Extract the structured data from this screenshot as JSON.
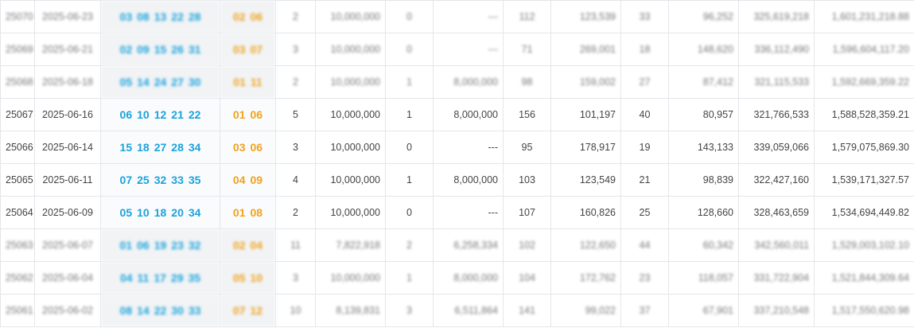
{
  "rows": [
    {
      "issue": "25070",
      "date": "2025-06-23",
      "front": [
        "03",
        "08",
        "13",
        "22",
        "28"
      ],
      "back": [
        "02",
        "06"
      ],
      "first_count": "2",
      "first_prize": "10,000,000",
      "second_count": "0",
      "second_prize": "---",
      "third_count": "112",
      "third_prize": "123,539",
      "fourth_count": "33",
      "fourth_prize": "96,252",
      "sales": "325,619,218",
      "pool": "1,601,231,218.88",
      "blurred": true
    },
    {
      "issue": "25069",
      "date": "2025-06-21",
      "front": [
        "02",
        "09",
        "15",
        "26",
        "31"
      ],
      "back": [
        "03",
        "07"
      ],
      "first_count": "3",
      "first_prize": "10,000,000",
      "second_count": "0",
      "second_prize": "---",
      "third_count": "71",
      "third_prize": "269,001",
      "fourth_count": "18",
      "fourth_prize": "148,620",
      "sales": "336,112,490",
      "pool": "1,596,604,117.20",
      "blurred": true
    },
    {
      "issue": "25068",
      "date": "2025-06-18",
      "front": [
        "05",
        "14",
        "24",
        "27",
        "30"
      ],
      "back": [
        "01",
        "11"
      ],
      "first_count": "2",
      "first_prize": "10,000,000",
      "second_count": "1",
      "second_prize": "8,000,000",
      "third_count": "98",
      "third_prize": "159,002",
      "fourth_count": "27",
      "fourth_prize": "87,412",
      "sales": "321,115,533",
      "pool": "1,592,669,359.22",
      "blurred": true
    },
    {
      "issue": "25067",
      "date": "2025-06-16",
      "front": [
        "06",
        "10",
        "12",
        "21",
        "22"
      ],
      "back": [
        "01",
        "06"
      ],
      "first_count": "5",
      "first_prize": "10,000,000",
      "second_count": "1",
      "second_prize": "8,000,000",
      "third_count": "156",
      "third_prize": "101,197",
      "fourth_count": "40",
      "fourth_prize": "80,957",
      "sales": "321,766,533",
      "pool": "1,588,528,359.21",
      "blurred": false
    },
    {
      "issue": "25066",
      "date": "2025-06-14",
      "front": [
        "15",
        "18",
        "27",
        "28",
        "34"
      ],
      "back": [
        "03",
        "06"
      ],
      "first_count": "3",
      "first_prize": "10,000,000",
      "second_count": "0",
      "second_prize": "---",
      "third_count": "95",
      "third_prize": "178,917",
      "fourth_count": "19",
      "fourth_prize": "143,133",
      "sales": "339,059,066",
      "pool": "1,579,075,869.30",
      "blurred": false
    },
    {
      "issue": "25065",
      "date": "2025-06-11",
      "front": [
        "07",
        "25",
        "32",
        "33",
        "35"
      ],
      "back": [
        "04",
        "09"
      ],
      "first_count": "4",
      "first_prize": "10,000,000",
      "second_count": "1",
      "second_prize": "8,000,000",
      "third_count": "103",
      "third_prize": "123,549",
      "fourth_count": "21",
      "fourth_prize": "98,839",
      "sales": "322,427,160",
      "pool": "1,539,171,327.57",
      "blurred": false
    },
    {
      "issue": "25064",
      "date": "2025-06-09",
      "front": [
        "05",
        "10",
        "18",
        "20",
        "34"
      ],
      "back": [
        "01",
        "08"
      ],
      "first_count": "2",
      "first_prize": "10,000,000",
      "second_count": "0",
      "second_prize": "---",
      "third_count": "107",
      "third_prize": "160,826",
      "fourth_count": "25",
      "fourth_prize": "128,660",
      "sales": "328,463,659",
      "pool": "1,534,694,449.82",
      "blurred": false
    },
    {
      "issue": "25063",
      "date": "2025-06-07",
      "front": [
        "01",
        "06",
        "19",
        "23",
        "32"
      ],
      "back": [
        "02",
        "04"
      ],
      "first_count": "11",
      "first_prize": "7,822,918",
      "second_count": "2",
      "second_prize": "6,258,334",
      "third_count": "102",
      "third_prize": "122,650",
      "fourth_count": "44",
      "fourth_prize": "60,342",
      "sales": "342,560,011",
      "pool": "1,529,003,102.10",
      "blurred": true
    },
    {
      "issue": "25062",
      "date": "2025-06-04",
      "front": [
        "04",
        "11",
        "17",
        "29",
        "35"
      ],
      "back": [
        "05",
        "10"
      ],
      "first_count": "3",
      "first_prize": "10,000,000",
      "second_count": "1",
      "second_prize": "8,000,000",
      "third_count": "104",
      "third_prize": "172,762",
      "fourth_count": "23",
      "fourth_prize": "118,057",
      "sales": "331,722,904",
      "pool": "1,521,844,309.64",
      "blurred": true
    },
    {
      "issue": "25061",
      "date": "2025-06-02",
      "front": [
        "08",
        "14",
        "22",
        "30",
        "33"
      ],
      "back": [
        "07",
        "12"
      ],
      "first_count": "10",
      "first_prize": "8,139,831",
      "second_count": "3",
      "second_prize": "6,511,864",
      "third_count": "141",
      "third_prize": "99,022",
      "fourth_count": "37",
      "fourth_prize": "67,901",
      "sales": "337,210,548",
      "pool": "1,517,550,620.98",
      "blurred": true
    }
  ]
}
